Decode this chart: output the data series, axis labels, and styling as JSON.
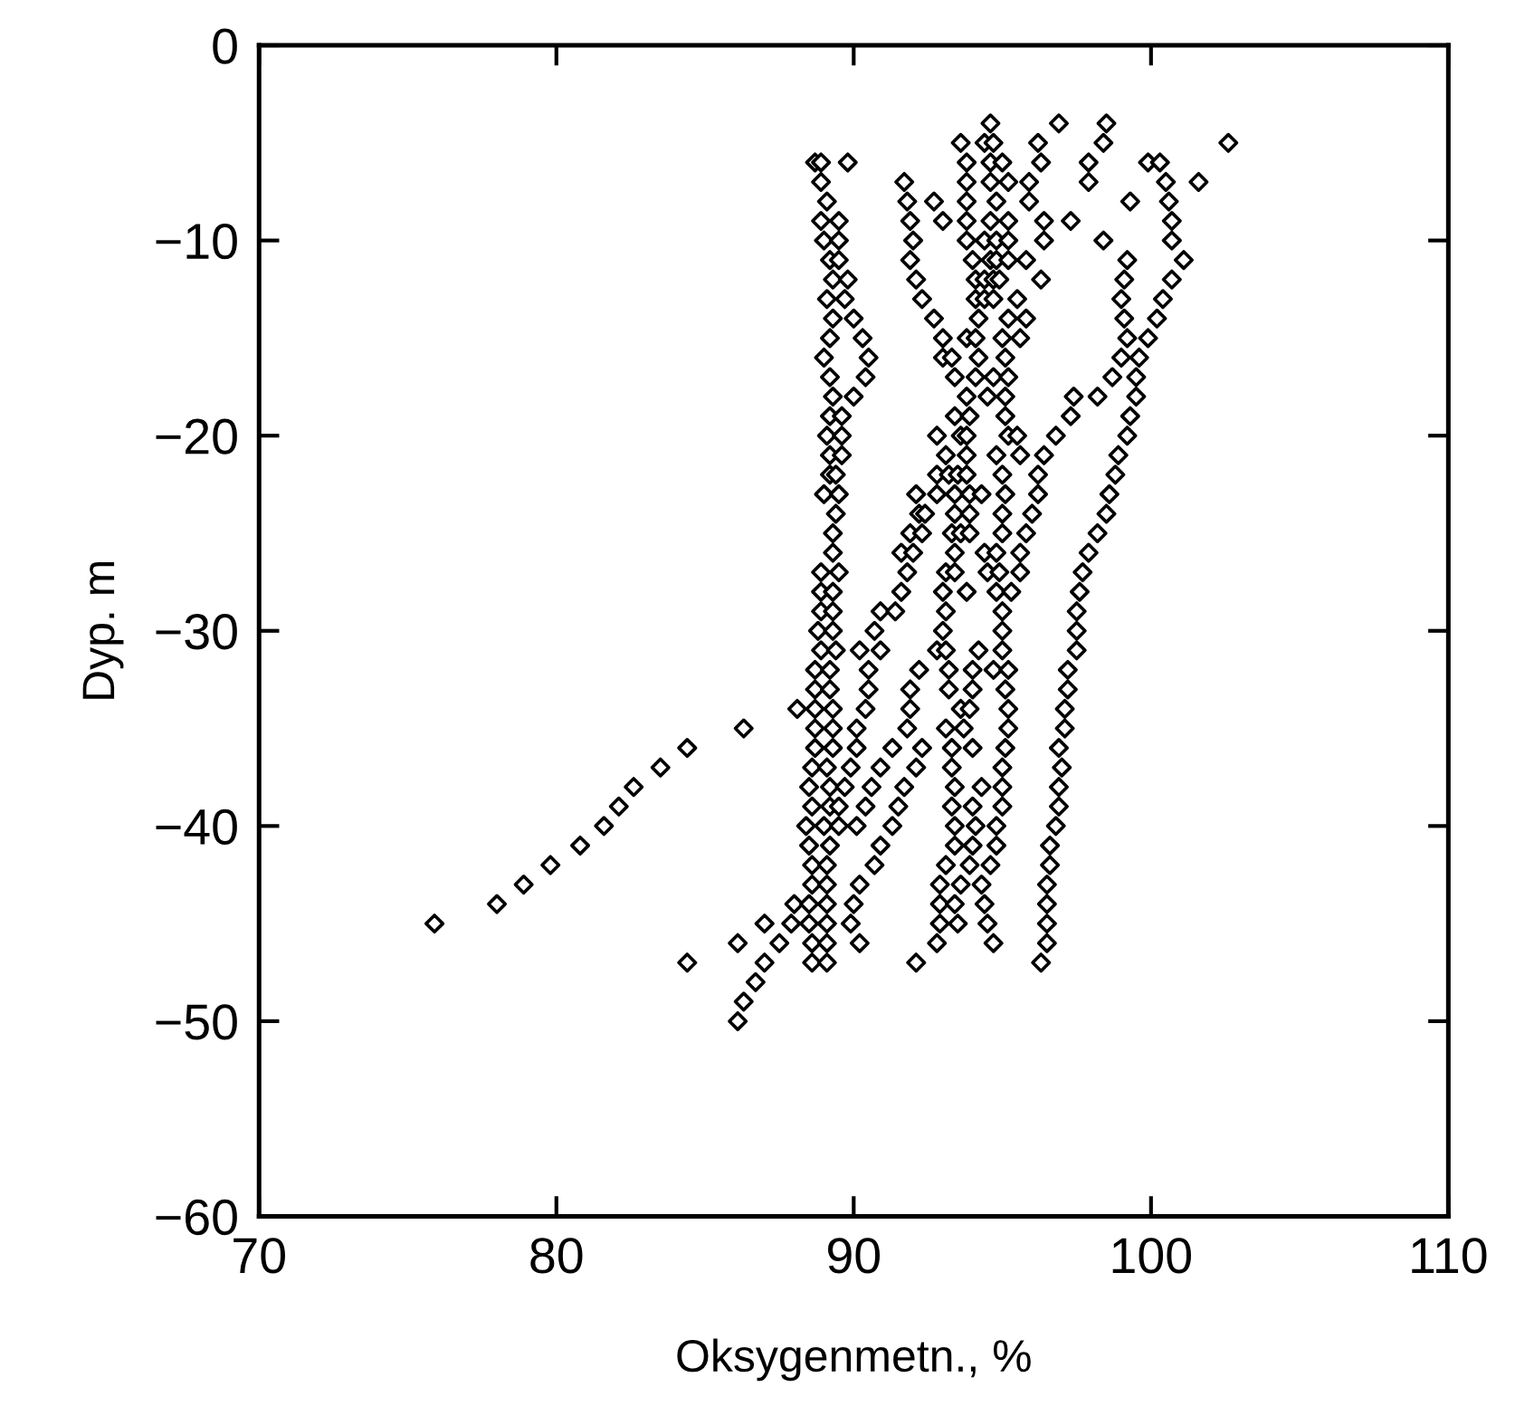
{
  "chart_data": {
    "type": "scatter",
    "xlabel": "Oksygenmetn., %",
    "ylabel": "Dyp. m",
    "xlim": [
      70,
      110
    ],
    "xticks": [
      70,
      80,
      90,
      100,
      110
    ],
    "ylim": [
      -60,
      0
    ],
    "yticks": [
      -60,
      -50,
      -40,
      -30,
      -20,
      -10,
      0
    ],
    "grid": false,
    "marker": "diamond",
    "series": [
      {
        "color": "#000000",
        "x": [
          94.6,
          96.9,
          98.5,
          93.6,
          94.4,
          94.7,
          96.2,
          98.4,
          102.6,
          88.7,
          88.9,
          89.8,
          93.8,
          94.6,
          95.0,
          96.3,
          97.9,
          99.9,
          100.3,
          88.9,
          91.7,
          93.8,
          94.6,
          95.2,
          95.9,
          97.9,
          100.5,
          101.6,
          89.1,
          91.8,
          92.7,
          93.8,
          94.8,
          95.9,
          99.3,
          100.6,
          88.9,
          89.5,
          91.9,
          93.0,
          93.8,
          94.6,
          95.2,
          96.4,
          97.3,
          100.7,
          89.0,
          89.5,
          92.0,
          93.8,
          94.4,
          94.8,
          95.2,
          96.4,
          98.4,
          100.7,
          89.2,
          89.5,
          91.9,
          94.0,
          94.6,
          94.8,
          95.2,
          95.8,
          99.2,
          101.1,
          89.3,
          89.8,
          92.1,
          94.1,
          94.4,
          94.7,
          94.9,
          96.3,
          99.1,
          100.7,
          89.1,
          89.7,
          92.3,
          94.1,
          94.4,
          94.7,
          95.5,
          99.0,
          100.4,
          89.3,
          90.0,
          92.7,
          94.2,
          95.2,
          95.8,
          99.1,
          100.2,
          89.2,
          90.3,
          93.0,
          93.8,
          94.1,
          95.0,
          95.6,
          99.2,
          99.9,
          89.0,
          90.5,
          93.0,
          93.3,
          94.2,
          95.1,
          99.0,
          99.6,
          89.2,
          90.4,
          93.4,
          94.1,
          94.7,
          95.2,
          98.7,
          99.5,
          89.3,
          90.0,
          93.8,
          94.5,
          95.1,
          97.4,
          98.2,
          99.5,
          89.2,
          89.6,
          93.4,
          93.9,
          95.1,
          97.3,
          99.3,
          89.1,
          89.6,
          92.8,
          93.6,
          93.8,
          95.2,
          95.5,
          96.8,
          99.2,
          89.2,
          89.6,
          93.1,
          93.8,
          94.8,
          95.6,
          96.4,
          98.9,
          89.2,
          89.4,
          92.8,
          93.2,
          93.5,
          93.8,
          95.0,
          96.2,
          98.8,
          89.0,
          89.5,
          92.1,
          92.8,
          93.4,
          93.9,
          94.3,
          95.1,
          96.2,
          98.6,
          89.4,
          92.2,
          92.4,
          93.4,
          93.9,
          95.0,
          96.0,
          98.5,
          89.3,
          91.9,
          92.3,
          93.3,
          93.6,
          93.9,
          95.0,
          95.8,
          98.2,
          89.3,
          91.6,
          92.0,
          93.4,
          94.4,
          94.8,
          95.6,
          97.9,
          88.9,
          89.5,
          91.8,
          93.1,
          93.4,
          94.5,
          94.9,
          95.6,
          97.7,
          88.9,
          89.3,
          91.6,
          93.0,
          93.8,
          94.8,
          95.3,
          97.6,
          88.9,
          89.3,
          90.9,
          91.4,
          93.1,
          95.0,
          97.5,
          88.8,
          89.3,
          90.7,
          93.0,
          95.0,
          97.5,
          88.9,
          89.4,
          90.2,
          90.9,
          92.8,
          93.1,
          94.2,
          95.0,
          97.5,
          88.7,
          89.2,
          90.5,
          92.2,
          93.2,
          94.0,
          94.7,
          95.2,
          97.2,
          88.7,
          89.2,
          90.5,
          91.9,
          93.2,
          94.0,
          95.1,
          97.2,
          88.1,
          88.7,
          89.3,
          90.4,
          91.9,
          93.6,
          93.9,
          95.2,
          97.1,
          86.3,
          88.7,
          89.3,
          90.1,
          91.8,
          93.1,
          93.7,
          95.2,
          97.1,
          84.4,
          88.7,
          89.3,
          90.1,
          91.3,
          92.3,
          93.3,
          94.0,
          95.1,
          96.9,
          83.5,
          88.6,
          89.1,
          89.9,
          90.9,
          92.1,
          93.3,
          95.0,
          97.0,
          82.6,
          88.5,
          89.2,
          89.7,
          90.6,
          91.7,
          93.4,
          94.3,
          95.0,
          96.9,
          82.1,
          88.6,
          89.2,
          89.5,
          90.4,
          91.5,
          93.3,
          94.0,
          95.0,
          96.9,
          81.6,
          88.4,
          89.0,
          89.5,
          90.1,
          91.3,
          93.4,
          94.1,
          94.8,
          96.8,
          80.8,
          88.5,
          89.2,
          90.9,
          93.4,
          94.0,
          94.8,
          96.6,
          79.8,
          88.6,
          89.1,
          90.7,
          93.1,
          93.9,
          94.6,
          96.6,
          78.9,
          88.6,
          89.1,
          90.2,
          92.9,
          93.6,
          94.3,
          96.5,
          78.0,
          88.0,
          88.5,
          89.1,
          90.0,
          92.9,
          93.4,
          94.4,
          96.5,
          75.9,
          87.0,
          87.9,
          88.5,
          89.1,
          89.9,
          92.9,
          93.5,
          94.5,
          96.5,
          86.1,
          87.5,
          88.6,
          89.1,
          90.2,
          92.8,
          94.7,
          96.5,
          84.4,
          87.0,
          88.6,
          89.1,
          92.1,
          96.3,
          86.7,
          86.3,
          86.1
        ],
        "values": [
          -4,
          -4,
          -4,
          -5,
          -5,
          -5,
          -5,
          -5,
          -5,
          -6,
          -6,
          -6,
          -6,
          -6,
          -6,
          -6,
          -6,
          -6,
          -6,
          -7,
          -7,
          -7,
          -7,
          -7,
          -7,
          -7,
          -7,
          -7,
          -8,
          -8,
          -8,
          -8,
          -8,
          -8,
          -8,
          -8,
          -9,
          -9,
          -9,
          -9,
          -9,
          -9,
          -9,
          -9,
          -9,
          -9,
          -10,
          -10,
          -10,
          -10,
          -10,
          -10,
          -10,
          -10,
          -10,
          -10,
          -11,
          -11,
          -11,
          -11,
          -11,
          -11,
          -11,
          -11,
          -11,
          -11,
          -12,
          -12,
          -12,
          -12,
          -12,
          -12,
          -12,
          -12,
          -12,
          -12,
          -13,
          -13,
          -13,
          -13,
          -13,
          -13,
          -13,
          -13,
          -13,
          -14,
          -14,
          -14,
          -14,
          -14,
          -14,
          -14,
          -14,
          -15,
          -15,
          -15,
          -15,
          -15,
          -15,
          -15,
          -15,
          -15,
          -16,
          -16,
          -16,
          -16,
          -16,
          -16,
          -16,
          -16,
          -17,
          -17,
          -17,
          -17,
          -17,
          -17,
          -17,
          -17,
          -18,
          -18,
          -18,
          -18,
          -18,
          -18,
          -18,
          -18,
          -19,
          -19,
          -19,
          -19,
          -19,
          -19,
          -19,
          -20,
          -20,
          -20,
          -20,
          -20,
          -20,
          -20,
          -20,
          -20,
          -21,
          -21,
          -21,
          -21,
          -21,
          -21,
          -21,
          -21,
          -22,
          -22,
          -22,
          -22,
          -22,
          -22,
          -22,
          -22,
          -22,
          -23,
          -23,
          -23,
          -23,
          -23,
          -23,
          -23,
          -23,
          -23,
          -23,
          -24,
          -24,
          -24,
          -24,
          -24,
          -24,
          -24,
          -24,
          -25,
          -25,
          -25,
          -25,
          -25,
          -25,
          -25,
          -25,
          -25,
          -26,
          -26,
          -26,
          -26,
          -26,
          -26,
          -26,
          -26,
          -27,
          -27,
          -27,
          -27,
          -27,
          -27,
          -27,
          -27,
          -27,
          -28,
          -28,
          -28,
          -28,
          -28,
          -28,
          -28,
          -28,
          -29,
          -29,
          -29,
          -29,
          -29,
          -29,
          -29,
          -30,
          -30,
          -30,
          -30,
          -30,
          -30,
          -31,
          -31,
          -31,
          -31,
          -31,
          -31,
          -31,
          -31,
          -31,
          -32,
          -32,
          -32,
          -32,
          -32,
          -32,
          -32,
          -32,
          -32,
          -33,
          -33,
          -33,
          -33,
          -33,
          -33,
          -33,
          -33,
          -34,
          -34,
          -34,
          -34,
          -34,
          -34,
          -34,
          -34,
          -34,
          -35,
          -35,
          -35,
          -35,
          -35,
          -35,
          -35,
          -35,
          -35,
          -36,
          -36,
          -36,
          -36,
          -36,
          -36,
          -36,
          -36,
          -36,
          -36,
          -37,
          -37,
          -37,
          -37,
          -37,
          -37,
          -37,
          -37,
          -37,
          -38,
          -38,
          -38,
          -38,
          -38,
          -38,
          -38,
          -38,
          -38,
          -38,
          -39,
          -39,
          -39,
          -39,
          -39,
          -39,
          -39,
          -39,
          -39,
          -39,
          -40,
          -40,
          -40,
          -40,
          -40,
          -40,
          -40,
          -40,
          -40,
          -40,
          -41,
          -41,
          -41,
          -41,
          -41,
          -41,
          -41,
          -41,
          -42,
          -42,
          -42,
          -42,
          -42,
          -42,
          -42,
          -42,
          -43,
          -43,
          -43,
          -43,
          -43,
          -43,
          -43,
          -43,
          -44,
          -44,
          -44,
          -44,
          -44,
          -44,
          -44,
          -44,
          -44,
          -45,
          -45,
          -45,
          -45,
          -45,
          -45,
          -45,
          -45,
          -45,
          -45,
          -46,
          -46,
          -46,
          -46,
          -46,
          -46,
          -46,
          -46,
          -47,
          -47,
          -47,
          -47,
          -47,
          -47,
          -48,
          -49,
          -50
        ]
      }
    ]
  }
}
